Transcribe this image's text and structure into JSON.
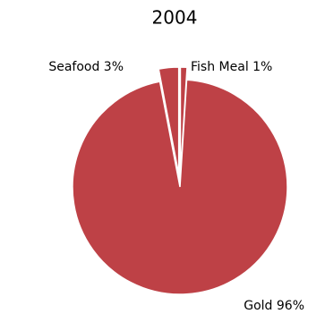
{
  "chart_data": {
    "type": "pie",
    "subtitle": "2004",
    "values": [
      1,
      96,
      3
    ],
    "value_labels": [
      "Fish Meal 1%",
      "Gold 96%",
      "Seafood 3%"
    ],
    "color": "#be4146"
  }
}
